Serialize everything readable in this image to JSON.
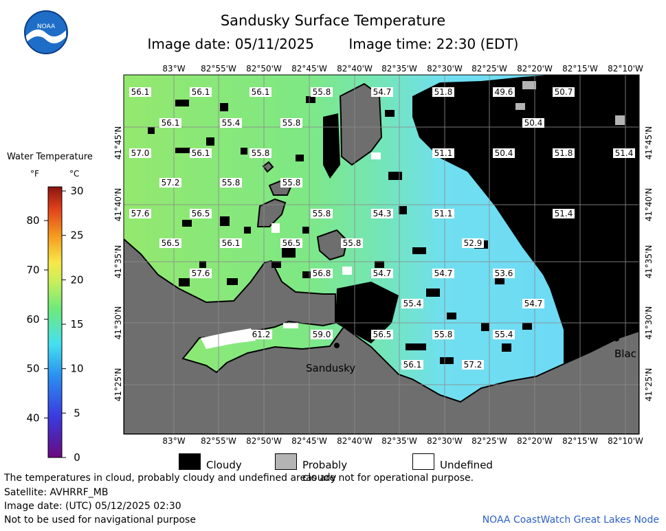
{
  "title": "Sandusky Surface Temperature",
  "image_date_label": "Image date: 05/11/2025",
  "image_time_label": "Image time: 22:30 (EDT)",
  "logo_text": "NOAA",
  "legend": {
    "title": "Water Temperature",
    "unit_f": "°F",
    "unit_c": "°C",
    "f_ticks": [
      "80",
      "70",
      "60",
      "50",
      "40"
    ],
    "c_ticks": [
      "30",
      "25",
      "20",
      "15",
      "10",
      "5",
      "0"
    ],
    "c_range": [
      0,
      30
    ]
  },
  "lon_labels": [
    "83°W",
    "82°55'W",
    "82°50'W",
    "82°45'W",
    "82°40'W",
    "82°35'W",
    "82°30'W",
    "82°25'W",
    "82°20'W",
    "82°15'W",
    "82°10'W"
  ],
  "lat_labels": [
    "41°45'N",
    "41°40'N",
    "41°35'N",
    "41°30'N",
    "41°25'N"
  ],
  "place_labels": [
    "Sandusky",
    "Blac"
  ],
  "temperatures": [
    {
      "value": "56.1"
    },
    {
      "value": "56.1"
    },
    {
      "value": "56.1"
    },
    {
      "value": "55.8"
    },
    {
      "value": "54.7"
    },
    {
      "value": "51.8"
    },
    {
      "value": "49.6"
    },
    {
      "value": "50.7"
    },
    {
      "value": "56.1"
    },
    {
      "value": "55.4"
    },
    {
      "value": "55.8"
    },
    {
      "value": "50.4"
    },
    {
      "value": "57.0"
    },
    {
      "value": "56.1"
    },
    {
      "value": "55.8"
    },
    {
      "value": "51.1"
    },
    {
      "value": "50.4"
    },
    {
      "value": "51.8"
    },
    {
      "value": "51.4"
    },
    {
      "value": "57.2"
    },
    {
      "value": "55.8"
    },
    {
      "value": "55.8"
    },
    {
      "value": "57.6"
    },
    {
      "value": "56.5"
    },
    {
      "value": "55.8"
    },
    {
      "value": "54.3"
    },
    {
      "value": "51.1"
    },
    {
      "value": "51.4"
    },
    {
      "value": "56.5"
    },
    {
      "value": "56.1"
    },
    {
      "value": "56.5"
    },
    {
      "value": "55.8"
    },
    {
      "value": "52.9"
    },
    {
      "value": "57.6"
    },
    {
      "value": "56.8"
    },
    {
      "value": "54.7"
    },
    {
      "value": "54.7"
    },
    {
      "value": "53.6"
    },
    {
      "value": "55.4"
    },
    {
      "value": "54.7"
    },
    {
      "value": "61.2"
    },
    {
      "value": "59.0"
    },
    {
      "value": "56.5"
    },
    {
      "value": "55.8"
    },
    {
      "value": "55.4"
    },
    {
      "value": "56.1"
    },
    {
      "value": "57.2"
    }
  ],
  "key": {
    "cloudy": "Cloudy",
    "probably_cloudy": "Probably cloudy",
    "undefined": "Undefined"
  },
  "footer": {
    "note": "The temperatures in cloud, probably cloudy and undefined areas are not for operational purpose.",
    "satellite": "Satellite: AVHRRF_MB",
    "utc_date": "Image date: (UTC) 05/12/2025  02:30",
    "nav_warning": "Not to be used for navigational purpose",
    "credit": "NOAA CoastWatch Great Lakes Node"
  },
  "colors": {
    "land": "#6e6e6e",
    "cloud": "#000000",
    "prob_cloud": "#b4b4b4",
    "water_warm": "#86e86a",
    "water_cool": "#6fe0f5",
    "credit": "#2a5fc7"
  }
}
